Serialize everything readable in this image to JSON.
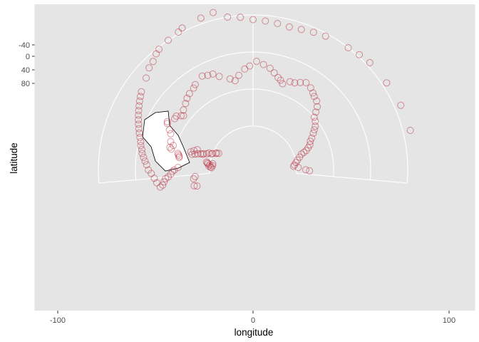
{
  "chart_data": {
    "type": "scatter",
    "projection": "azimuthal (polar-like, ggplot coord_map)",
    "xlabel": "longitude",
    "ylabel": "latitude",
    "x_ticks": [
      "-100",
      "0",
      "100"
    ],
    "y_ticks": [
      "-40",
      "0",
      "40",
      "80"
    ],
    "panel_background": "#e5e5e5",
    "grid_color": "#ffffff",
    "point_color": "#b2182b",
    "grid": true,
    "legend": "none",
    "inset": "map of US states outlined in black",
    "points": [
      [
        -92,
        82
      ],
      [
        -91,
        81
      ],
      [
        -90,
        79
      ],
      [
        -88,
        80
      ],
      [
        -87,
        78
      ],
      [
        -86,
        77
      ],
      [
        -85,
        76
      ],
      [
        -89,
        83
      ],
      [
        -86,
        83
      ],
      [
        -111,
        61
      ],
      [
        -112,
        64
      ],
      [
        -68,
        86
      ],
      [
        -69,
        84
      ],
      [
        -70,
        83
      ],
      [
        -72,
        80
      ],
      [
        -73,
        79
      ],
      [
        -73,
        76
      ],
      [
        -75,
        74
      ],
      [
        -76,
        71
      ],
      [
        -77,
        70
      ],
      [
        -77,
        68
      ],
      [
        -78,
        65
      ],
      [
        -79,
        62
      ],
      [
        -80,
        59
      ],
      [
        -78,
        57
      ],
      [
        -76,
        60
      ],
      [
        -74,
        63
      ],
      [
        -104,
        62
      ],
      [
        -102,
        64
      ],
      [
        -85,
        46
      ],
      [
        -84,
        46
      ],
      [
        -83,
        45
      ],
      [
        -82,
        44
      ],
      [
        -80,
        36
      ],
      [
        -79,
        34
      ],
      [
        -77,
        37
      ],
      [
        -75,
        33
      ],
      [
        -70,
        30
      ],
      [
        -68,
        27
      ],
      [
        -65,
        22
      ],
      [
        -64,
        21
      ],
      [
        -60,
        26
      ],
      [
        -58,
        26
      ],
      [
        -56,
        30
      ],
      [
        -55,
        32
      ],
      [
        -52,
        28
      ],
      [
        -48,
        25
      ],
      [
        -45,
        22
      ],
      [
        -42,
        20
      ],
      [
        -38,
        18
      ],
      [
        -36,
        16
      ],
      [
        -30,
        12
      ],
      [
        -27,
        14
      ],
      [
        -24,
        15
      ],
      [
        -21,
        20
      ],
      [
        -15,
        26
      ],
      [
        -12,
        29
      ],
      [
        -9,
        24
      ],
      [
        -5,
        18
      ],
      [
        -2,
        15
      ],
      [
        2,
        10
      ],
      [
        6,
        13
      ],
      [
        10,
        16
      ],
      [
        13,
        20
      ],
      [
        16,
        24
      ],
      [
        18,
        26
      ],
      [
        20,
        29
      ],
      [
        24,
        24
      ],
      [
        27,
        23
      ],
      [
        30,
        20
      ],
      [
        33,
        17
      ],
      [
        37,
        19
      ],
      [
        40,
        22
      ],
      [
        42,
        24
      ],
      [
        45,
        26
      ],
      [
        48,
        30
      ],
      [
        50,
        35
      ],
      [
        52,
        40
      ],
      [
        55,
        42
      ],
      [
        58,
        45
      ],
      [
        60,
        48
      ],
      [
        62,
        51
      ],
      [
        65,
        55
      ],
      [
        67,
        58
      ],
      [
        70,
        60
      ],
      [
        72,
        63
      ],
      [
        74,
        66
      ],
      [
        75,
        69
      ],
      [
        76,
        72
      ],
      [
        79,
        75
      ],
      [
        82,
        78
      ],
      [
        85,
        80
      ],
      [
        88,
        82
      ],
      [
        90,
        83
      ],
      [
        92,
        78
      ],
      [
        95,
        70
      ],
      [
        96,
        66
      ],
      [
        -93,
        46
      ],
      [
        -95,
        42
      ],
      [
        -96,
        40
      ],
      [
        -98,
        38
      ],
      [
        -100,
        35
      ],
      [
        -101,
        32
      ],
      [
        -103,
        30
      ],
      [
        -105,
        28
      ],
      [
        -106,
        25
      ],
      [
        -103,
        22
      ],
      [
        -100,
        20
      ],
      [
        -97,
        17
      ],
      [
        -95,
        14
      ],
      [
        -92,
        12
      ],
      [
        -90,
        10
      ],
      [
        -88,
        8
      ],
      [
        -86,
        6
      ],
      [
        -84,
        5
      ],
      [
        -82,
        3
      ],
      [
        -80,
        2
      ],
      [
        -78,
        0
      ],
      [
        -76,
        -2
      ],
      [
        -74,
        -4
      ],
      [
        -72,
        -6
      ],
      [
        -70,
        -8
      ],
      [
        -68,
        -10
      ],
      [
        -66,
        -12
      ],
      [
        -64,
        -14
      ],
      [
        -62,
        -16
      ],
      [
        -60,
        -18
      ],
      [
        -58,
        -20
      ],
      [
        -52,
        -25
      ],
      [
        -48,
        -30
      ],
      [
        -45,
        -32
      ],
      [
        -42,
        -36
      ],
      [
        -40,
        -38
      ],
      [
        -35,
        -40
      ],
      [
        -30,
        -42
      ],
      [
        -28,
        -44
      ],
      [
        -20,
        -46
      ],
      [
        -15,
        -48
      ],
      [
        -10,
        -40
      ],
      [
        -5,
        -38
      ],
      [
        0,
        -35
      ],
      [
        5,
        -34
      ],
      [
        10,
        -33
      ],
      [
        15,
        -32
      ],
      [
        20,
        -33
      ],
      [
        25,
        -35
      ],
      [
        30,
        -37
      ],
      [
        40,
        -40
      ],
      [
        45,
        -42
      ],
      [
        50,
        -44
      ],
      [
        60,
        -45
      ],
      [
        70,
        -47
      ],
      [
        80,
        -48
      ]
    ]
  }
}
